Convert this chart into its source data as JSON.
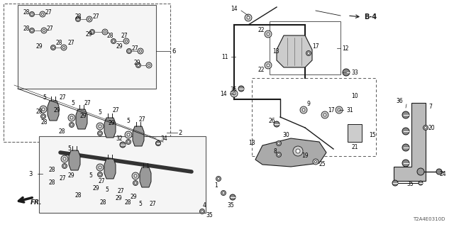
{
  "bg_color": "#ffffff",
  "fig_width": 6.4,
  "fig_height": 3.2,
  "dpi": 100,
  "watermark": "T2A4E0310D",
  "ref_label": "B-4"
}
